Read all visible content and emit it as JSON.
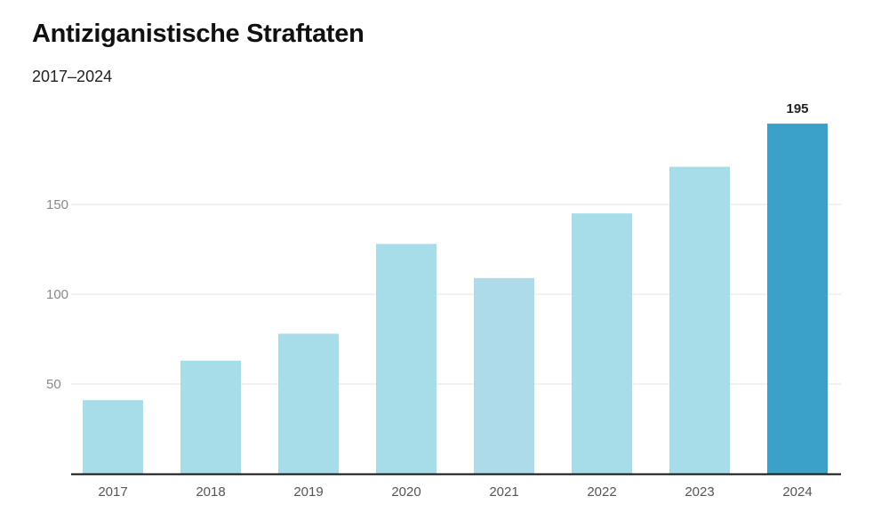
{
  "header": {
    "title": "Antiziganistische Straftaten",
    "subtitle": "2017–2024"
  },
  "chart_data": {
    "type": "bar",
    "title": "Antiziganistische Straftaten",
    "subtitle": "2017–2024",
    "categories": [
      "2017",
      "2018",
      "2019",
      "2020",
      "2021",
      "2022",
      "2023",
      "2024"
    ],
    "values": [
      41,
      63,
      78,
      128,
      109,
      145,
      171,
      195
    ],
    "ylim": [
      0,
      195
    ],
    "yticks": [
      50,
      100,
      150
    ],
    "grid": true,
    "colors": {
      "default": "#a6dde9",
      "year_2021": "#addbea",
      "highlight": "#3ba1c8"
    },
    "highlight_index": 7,
    "data_labels": [
      {
        "index": 7,
        "text": "195"
      }
    ]
  }
}
